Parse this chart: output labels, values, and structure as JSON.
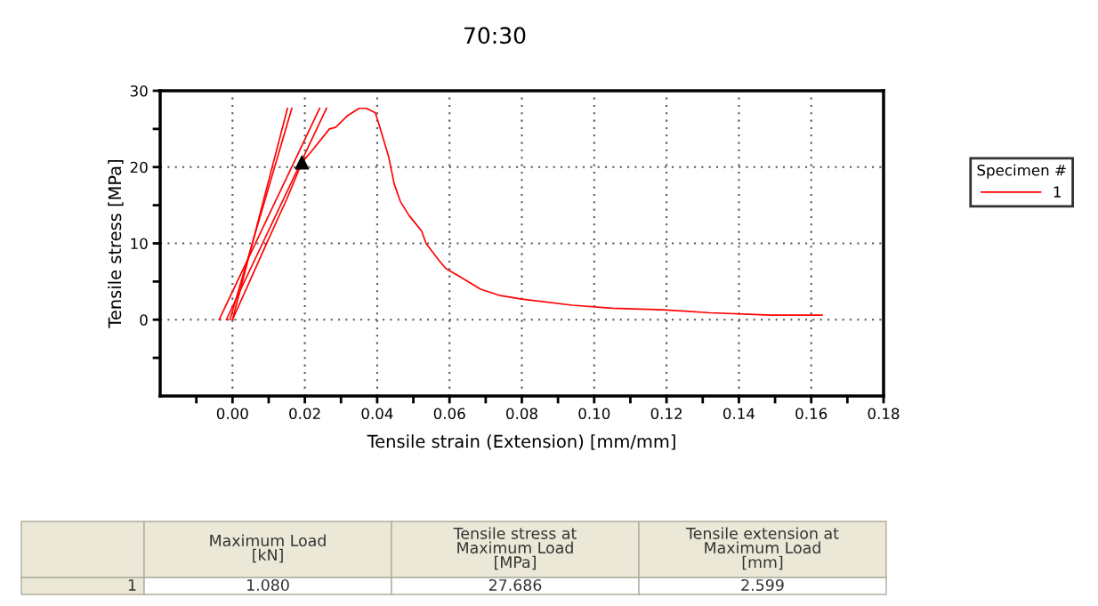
{
  "chart_data": {
    "type": "line",
    "title": "70:30",
    "xlabel": "Tensile strain (Extension) [mm/mm]",
    "ylabel": "Tensile stress [MPa]",
    "legend_title": "Specimen #",
    "legend": "right",
    "grid": true,
    "line_style": "solid",
    "xlim": [
      -0.02,
      0.18
    ],
    "ylim": [
      -10,
      30
    ],
    "xticks": [
      {
        "value": -0.01,
        "label": null
      },
      {
        "value": 0.0,
        "label": "0.00"
      },
      {
        "value": 0.01,
        "label": null
      },
      {
        "value": 0.02,
        "label": "0.02"
      },
      {
        "value": 0.03,
        "label": null
      },
      {
        "value": 0.04,
        "label": "0.04"
      },
      {
        "value": 0.05,
        "label": null
      },
      {
        "value": 0.06,
        "label": "0.06"
      },
      {
        "value": 0.07,
        "label": null
      },
      {
        "value": 0.08,
        "label": "0.08"
      },
      {
        "value": 0.09,
        "label": null
      },
      {
        "value": 0.1,
        "label": "0.10"
      },
      {
        "value": 0.11,
        "label": null
      },
      {
        "value": 0.12,
        "label": "0.12"
      },
      {
        "value": 0.13,
        "label": null
      },
      {
        "value": 0.14,
        "label": "0.14"
      },
      {
        "value": 0.15,
        "label": null
      },
      {
        "value": 0.16,
        "label": "0.16"
      },
      {
        "value": 0.17,
        "label": null
      },
      {
        "value": 0.18,
        "label": "0.18"
      }
    ],
    "yticks": [
      {
        "value": -5,
        "label": null
      },
      0,
      {
        "value": 5,
        "label": null
      },
      10,
      {
        "value": 15,
        "label": null
      },
      20,
      {
        "value": 25,
        "label": null
      },
      30
    ],
    "series": [
      {
        "name": "1",
        "color": "#ff0000",
        "x": [
          0.0,
          0.005,
          0.01,
          0.015,
          0.0192,
          0.0219,
          0.0268,
          0.0285,
          0.0317,
          0.035,
          0.037,
          0.0395,
          0.041,
          0.0432,
          0.0447,
          0.0464,
          0.0489,
          0.0513,
          0.0523,
          0.0535,
          0.0572,
          0.059,
          0.063,
          0.0686,
          0.0737,
          0.08,
          0.094,
          0.105,
          0.119,
          0.132,
          0.149,
          0.163
        ],
        "values": [
          0,
          5.3,
          10.6,
          15.8,
          20.6,
          22.1,
          25.0,
          25.2,
          26.7,
          27.7,
          27.7,
          27.1,
          24.8,
          21.3,
          17.8,
          15.5,
          13.6,
          12.2,
          11.6,
          10.0,
          7.7,
          6.7,
          5.6,
          4.0,
          3.2,
          2.7,
          1.9,
          1.5,
          1.3,
          0.9,
          0.6,
          0.6
        ]
      },
      {
        "color": "#ff0000",
        "x": [
          0.0,
          0.0152
        ],
        "values": [
          0,
          27.7
        ]
      },
      {
        "color": "#ff0000",
        "x": [
          -0.0007,
          0.0164
        ],
        "values": [
          0,
          27.7
        ]
      },
      {
        "color": "#ff0000",
        "x": [
          -0.0037,
          0.0241
        ],
        "values": [
          0,
          27.7
        ]
      },
      {
        "color": "#ff0000",
        "x": [
          -0.0017,
          0.026
        ],
        "values": [
          0,
          27.7
        ]
      },
      {
        "type": "scatter",
        "marker": "triangle",
        "color": "#000000",
        "x": [
          0.0192
        ],
        "values": [
          20.6
        ]
      }
    ],
    "annotations": [
      "Maximum Load\n[kN]",
      "Tensile stress at\nMaximum Load\n[MPa]",
      "Tensile extension at\nMaximum Load\n[mm]",
      "1",
      "1.080",
      "27.686",
      "2.599"
    ]
  }
}
